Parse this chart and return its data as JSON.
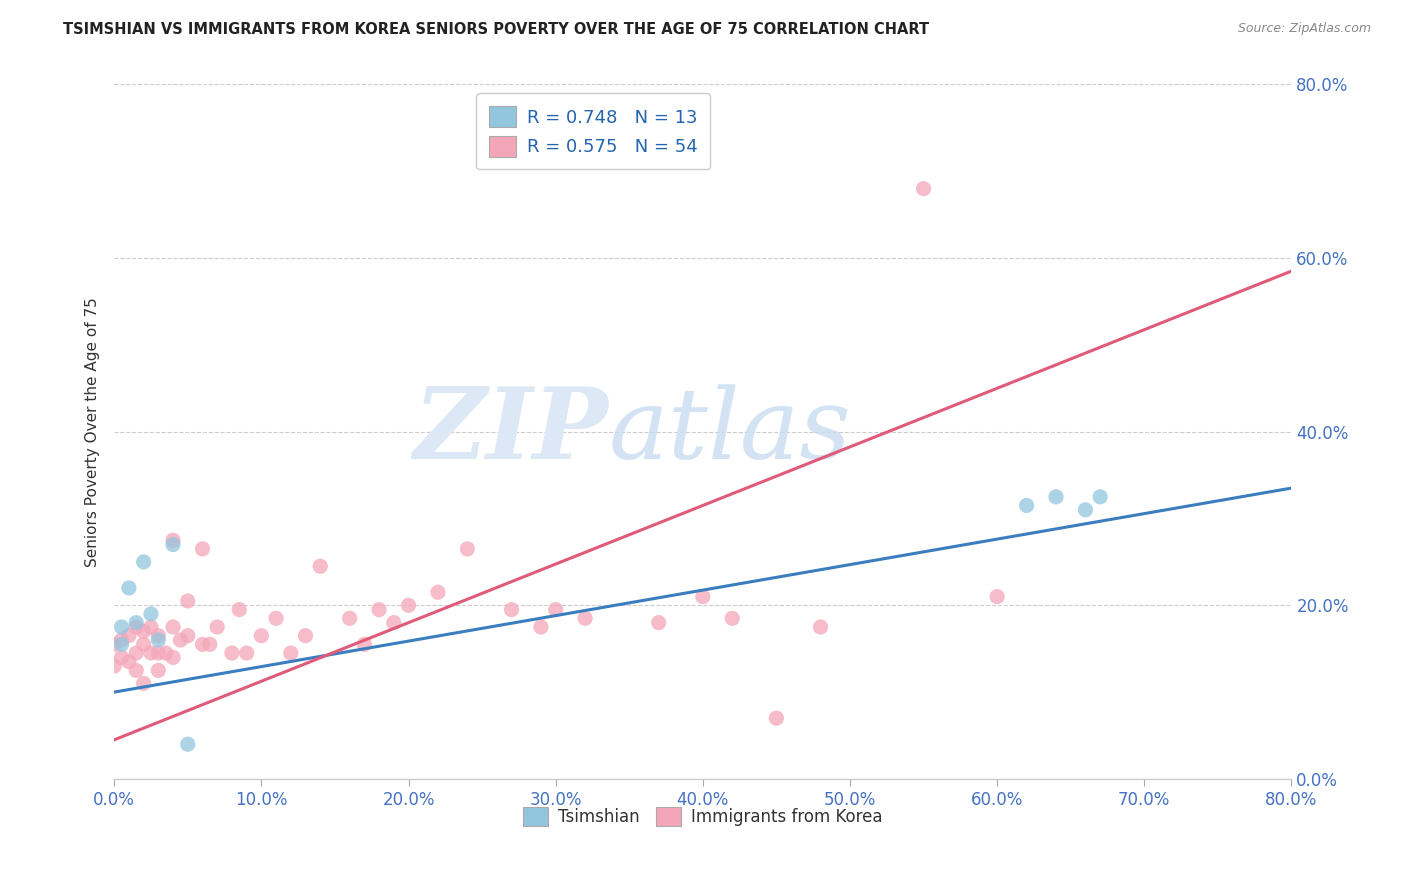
{
  "title": "TSIMSHIAN VS IMMIGRANTS FROM KOREA SENIORS POVERTY OVER THE AGE OF 75 CORRELATION CHART",
  "source_text": "Source: ZipAtlas.com",
  "ylabel": "Seniors Poverty Over the Age of 75",
  "legend_label1": "Tsimshian",
  "legend_label2": "Immigrants from Korea",
  "R1": 0.748,
  "N1": 13,
  "R2": 0.575,
  "N2": 54,
  "color1": "#92c5de",
  "color2": "#f4a6b8",
  "line_color1": "#3a7ebf",
  "line_color2": "#e05a7a",
  "background_color": "#ffffff",
  "xlim": [
    0.0,
    0.8
  ],
  "ylim": [
    0.0,
    0.8
  ],
  "tsimshian_x": [
    0.005,
    0.005,
    0.01,
    0.015,
    0.02,
    0.025,
    0.03,
    0.04,
    0.05,
    0.62,
    0.64,
    0.66,
    0.67
  ],
  "tsimshian_y": [
    0.155,
    0.175,
    0.22,
    0.18,
    0.25,
    0.19,
    0.16,
    0.27,
    0.04,
    0.315,
    0.325,
    0.31,
    0.325
  ],
  "korea_x": [
    0.0,
    0.0,
    0.005,
    0.005,
    0.01,
    0.01,
    0.015,
    0.015,
    0.015,
    0.02,
    0.02,
    0.02,
    0.025,
    0.025,
    0.03,
    0.03,
    0.03,
    0.035,
    0.04,
    0.04,
    0.04,
    0.045,
    0.05,
    0.05,
    0.06,
    0.06,
    0.065,
    0.07,
    0.08,
    0.085,
    0.09,
    0.1,
    0.11,
    0.12,
    0.13,
    0.14,
    0.16,
    0.17,
    0.18,
    0.19,
    0.2,
    0.22,
    0.24,
    0.27,
    0.29,
    0.3,
    0.32,
    0.37,
    0.4,
    0.42,
    0.45,
    0.48,
    0.55,
    0.6
  ],
  "korea_y": [
    0.13,
    0.155,
    0.14,
    0.16,
    0.135,
    0.165,
    0.125,
    0.145,
    0.175,
    0.11,
    0.155,
    0.17,
    0.145,
    0.175,
    0.125,
    0.145,
    0.165,
    0.145,
    0.14,
    0.175,
    0.275,
    0.16,
    0.165,
    0.205,
    0.155,
    0.265,
    0.155,
    0.175,
    0.145,
    0.195,
    0.145,
    0.165,
    0.185,
    0.145,
    0.165,
    0.245,
    0.185,
    0.155,
    0.195,
    0.18,
    0.2,
    0.215,
    0.265,
    0.195,
    0.175,
    0.195,
    0.185,
    0.18,
    0.21,
    0.185,
    0.07,
    0.175,
    0.68,
    0.21
  ]
}
